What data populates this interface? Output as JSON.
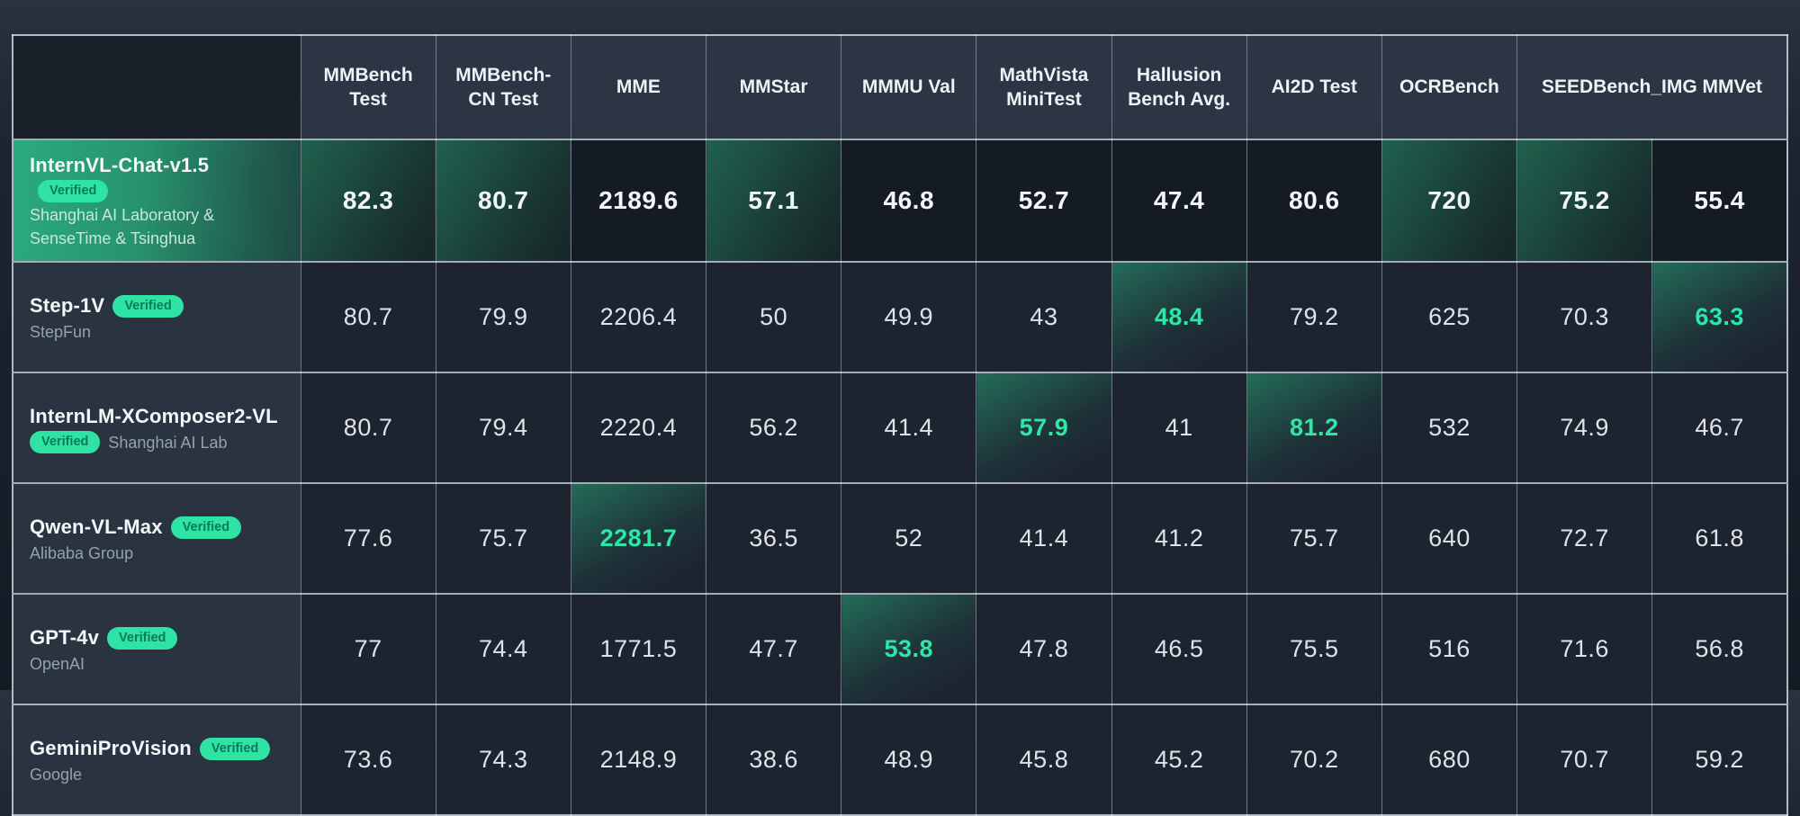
{
  "colors": {
    "accent_green": "#2ee6a6",
    "badge_bg": "#2fe3a4",
    "badge_text": "#0c7a5a",
    "header_bg": "#2b3543",
    "cell_bg": "#1d2430",
    "featured_row_green": "#2aab7d",
    "page_bg": "#1a212c"
  },
  "table": {
    "columns": [
      {
        "label": "MMBench Test",
        "span": 1
      },
      {
        "label": "MMBench- CN Test",
        "span": 1
      },
      {
        "label": "MME",
        "span": 1
      },
      {
        "label": "MMStar",
        "span": 1
      },
      {
        "label": "MMMU Val",
        "span": 1
      },
      {
        "label": "MathVista MiniTest",
        "span": 1
      },
      {
        "label": "Hallusion Bench Avg.",
        "span": 1
      },
      {
        "label": "AI2D Test",
        "span": 1
      },
      {
        "label": "OCRBench",
        "span": 1
      },
      {
        "label": "SEEDBench_IMG MMVet",
        "span": 2
      }
    ],
    "rows": [
      {
        "model": "InternVL-Chat-v1.5",
        "badge": "Verified",
        "org": "Shanghai AI Laboratory & SenseTime & Tsinghua",
        "featured": true,
        "badge_on_second_line": false,
        "values": [
          "82.3",
          "80.7",
          "2189.6",
          "57.1",
          "46.8",
          "52.7",
          "47.4",
          "80.6",
          "720",
          "75.2",
          "55.4"
        ],
        "highlights": [
          0,
          1,
          3,
          8,
          9
        ]
      },
      {
        "model": "Step-1V",
        "badge": "Verified",
        "org": "StepFun",
        "featured": false,
        "badge_on_second_line": false,
        "values": [
          "80.7",
          "79.9",
          "2206.4",
          "50",
          "49.9",
          "43",
          "48.4",
          "79.2",
          "625",
          "70.3",
          "63.3"
        ],
        "highlights": [
          6,
          10
        ]
      },
      {
        "model": "InternLM-XComposer2-VL",
        "badge": "Verified",
        "org": "Shanghai AI Lab",
        "featured": false,
        "badge_on_second_line": true,
        "values": [
          "80.7",
          "79.4",
          "2220.4",
          "56.2",
          "41.4",
          "57.9",
          "41",
          "81.2",
          "532",
          "74.9",
          "46.7"
        ],
        "highlights": [
          5,
          7
        ]
      },
      {
        "model": "Qwen-VL-Max",
        "badge": "Verified",
        "org": "Alibaba Group",
        "featured": false,
        "badge_on_second_line": false,
        "values": [
          "77.6",
          "75.7",
          "2281.7",
          "36.5",
          "52",
          "41.4",
          "41.2",
          "75.7",
          "640",
          "72.7",
          "61.8"
        ],
        "highlights": [
          2
        ]
      },
      {
        "model": "GPT-4v",
        "badge": "Verified",
        "org": "OpenAI",
        "featured": false,
        "badge_on_second_line": false,
        "values": [
          "77",
          "74.4",
          "1771.5",
          "47.7",
          "53.8",
          "47.8",
          "46.5",
          "75.5",
          "516",
          "71.6",
          "56.8"
        ],
        "highlights": [
          4
        ]
      },
      {
        "model": "GeminiProVision",
        "badge": "Verified",
        "org": "Google",
        "featured": false,
        "badge_on_second_line": false,
        "values": [
          "73.6",
          "74.3",
          "2148.9",
          "38.6",
          "48.9",
          "45.8",
          "45.2",
          "70.2",
          "680",
          "70.7",
          "59.2"
        ],
        "highlights": []
      }
    ]
  },
  "chart_data": {
    "type": "table",
    "title": "Multimodal benchmark leaderboard",
    "columns": [
      "MMBench Test",
      "MMBench-CN Test",
      "MME",
      "MMStar",
      "MMMU Val",
      "MathVista MiniTest",
      "Hallusion Bench Avg.",
      "AI2D Test",
      "OCRBench",
      "SEEDBench_IMG",
      "MMVet"
    ],
    "series": [
      {
        "name": "InternVL-Chat-v1.5",
        "org": "Shanghai AI Laboratory & SenseTime & Tsinghua",
        "verified": true,
        "values": [
          82.3,
          80.7,
          2189.6,
          57.1,
          46.8,
          52.7,
          47.4,
          80.6,
          720,
          75.2,
          55.4
        ]
      },
      {
        "name": "Step-1V",
        "org": "StepFun",
        "verified": true,
        "values": [
          80.7,
          79.9,
          2206.4,
          50,
          49.9,
          43,
          48.4,
          79.2,
          625,
          70.3,
          63.3
        ]
      },
      {
        "name": "InternLM-XComposer2-VL",
        "org": "Shanghai AI Lab",
        "verified": true,
        "values": [
          80.7,
          79.4,
          2220.4,
          56.2,
          41.4,
          57.9,
          41,
          81.2,
          532,
          74.9,
          46.7
        ]
      },
      {
        "name": "Qwen-VL-Max",
        "org": "Alibaba Group",
        "verified": true,
        "values": [
          77.6,
          75.7,
          2281.7,
          36.5,
          52,
          41.4,
          41.2,
          75.7,
          640,
          72.7,
          61.8
        ]
      },
      {
        "name": "GPT-4v",
        "org": "OpenAI",
        "verified": true,
        "values": [
          77,
          74.4,
          1771.5,
          47.7,
          53.8,
          47.8,
          46.5,
          75.5,
          516,
          71.6,
          56.8
        ]
      },
      {
        "name": "GeminiProVision",
        "org": "Google",
        "verified": true,
        "values": [
          73.6,
          74.3,
          2148.9,
          38.6,
          48.9,
          45.8,
          45.2,
          70.2,
          680,
          70.7,
          59.2
        ]
      }
    ],
    "highlight_meaning": "green bold value = best score in that column",
    "legend_position": "none",
    "grid": true
  }
}
